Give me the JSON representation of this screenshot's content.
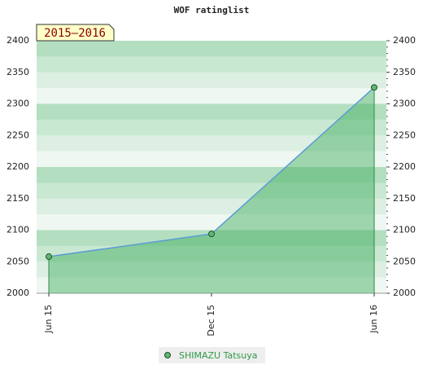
{
  "chart_data": {
    "type": "line",
    "title": "WOF ratinglist",
    "badge": "2015–2016",
    "categories": [
      "Jun 15",
      "Dec 15",
      "Jun 16"
    ],
    "series": [
      {
        "name": "SHIMAZU Tatsuya",
        "color": "#5b9bd5",
        "values": [
          2058,
          2094,
          2326
        ]
      }
    ],
    "ylim": [
      2000,
      2400
    ],
    "yticks": [
      2000,
      2050,
      2100,
      2150,
      2200,
      2250,
      2300,
      2350,
      2400
    ]
  }
}
